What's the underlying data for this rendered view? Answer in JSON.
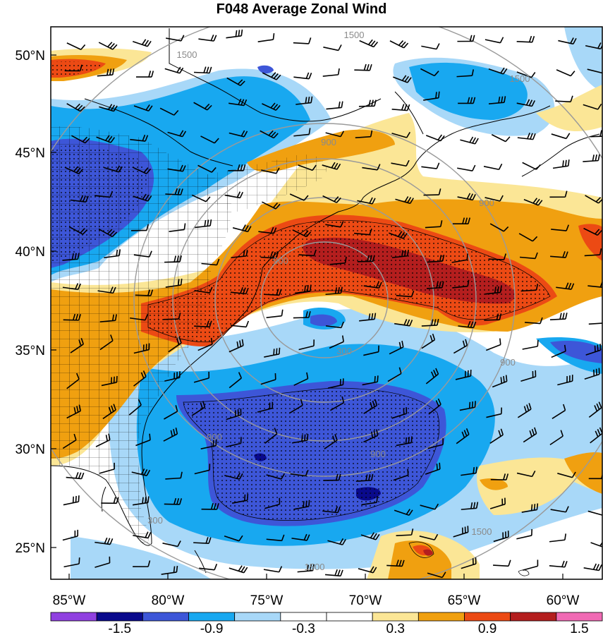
{
  "title": "F048 Average Zonal Wind",
  "colors": {
    "dark_blue": "#0a0a8c",
    "blue": "#3d56d8",
    "mid_blue": "#18a8f0",
    "light_blue": "#a8d8f8",
    "white": "#ffffff",
    "light_yellow": "#fbe696",
    "orange": "#f0a010",
    "red_orange": "#ec4a14",
    "dark_red": "#b41e1e",
    "purple": "#9040e0",
    "pink": "#f06ab4",
    "ring": "#9a9a9a",
    "coast": "#000000"
  },
  "map": {
    "lat_range": [
      23.5,
      51.5
    ],
    "lon_range": [
      -85.0,
      -57.0
    ],
    "lat_labels": [
      "25°N",
      "30°N",
      "35°N",
      "40°N",
      "45°N",
      "50°N"
    ],
    "lon_labels": [
      "85°W",
      "80°W",
      "75°W",
      "70°W",
      "65°W",
      "60°W"
    ],
    "lat_ticks": [
      25,
      30,
      35,
      40,
      45,
      50
    ],
    "lon_ticks": [
      -85,
      -80,
      -75,
      -70,
      -65,
      -60
    ]
  },
  "range_rings": {
    "center": [
      -70.2,
      37.8
    ],
    "labels": [
      "300",
      "900",
      "1500"
    ],
    "label_instances": [
      {
        "text": "300"
      },
      {
        "text": "900"
      },
      {
        "text": "900"
      },
      {
        "text": "900"
      },
      {
        "text": "900"
      },
      {
        "text": "900"
      },
      {
        "text": "900"
      },
      {
        "text": "1500"
      },
      {
        "text": "1500"
      },
      {
        "text": "1500"
      },
      {
        "text": "1500"
      },
      {
        "text": "1500"
      },
      {
        "text": "300"
      }
    ]
  },
  "colorbar": {
    "labels": [
      "-1.5",
      "-0.9",
      "-0.3",
      "0.3",
      "0.9",
      "1.5"
    ],
    "colors": [
      "#9040e0",
      "#0a0a8c",
      "#3d56d8",
      "#18a8f0",
      "#a8d8f8",
      "#ffffff",
      "#ffffff",
      "#fbe696",
      "#f0a010",
      "#ec4a14",
      "#b41e1e",
      "#f06ab4"
    ]
  }
}
